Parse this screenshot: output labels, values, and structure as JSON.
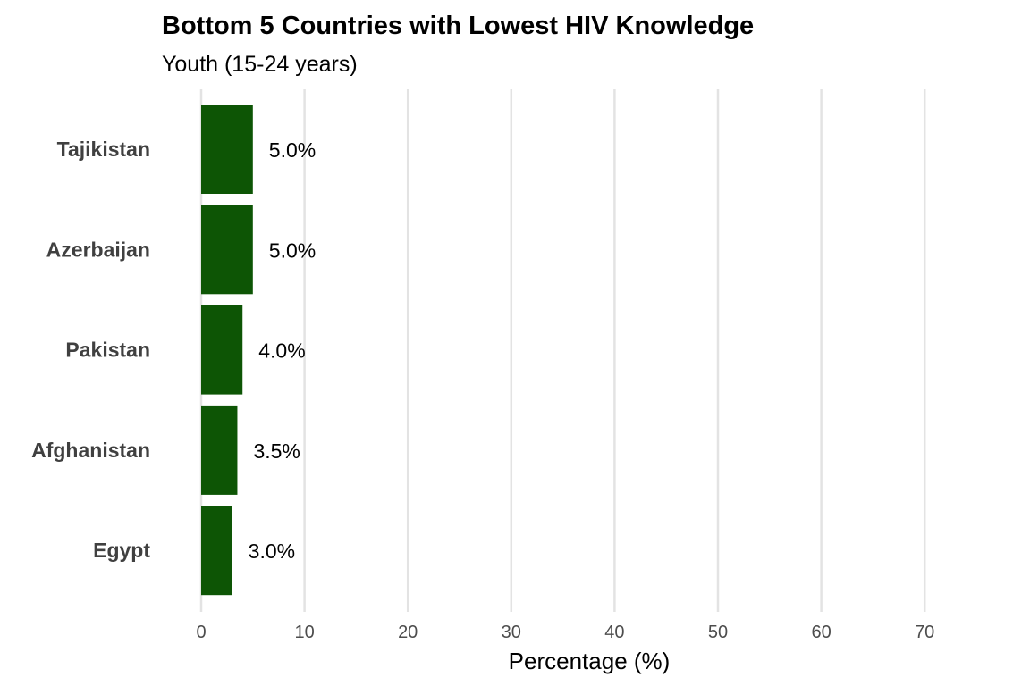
{
  "chart_data": {
    "type": "bar",
    "orientation": "horizontal",
    "title": "Bottom 5 Countries with Lowest HIV Knowledge",
    "subtitle": "Youth (15-24 years)",
    "xlabel": "Percentage (%)",
    "ylabel": "",
    "categories": [
      "Tajikistan",
      "Azerbaijan",
      "Pakistan",
      "Afghanistan",
      "Egypt"
    ],
    "values": [
      5.0,
      5.0,
      4.0,
      3.5,
      3.0
    ],
    "value_labels": [
      "5.0%",
      "5.0%",
      "4.0%",
      "3.5%",
      "3.0%"
    ],
    "xlim": [
      0,
      80
    ],
    "xticks": [
      0,
      10,
      20,
      30,
      40,
      50,
      60,
      70
    ],
    "grid": "vertical-major",
    "legend": "none",
    "bar_color": "#0d5505"
  }
}
